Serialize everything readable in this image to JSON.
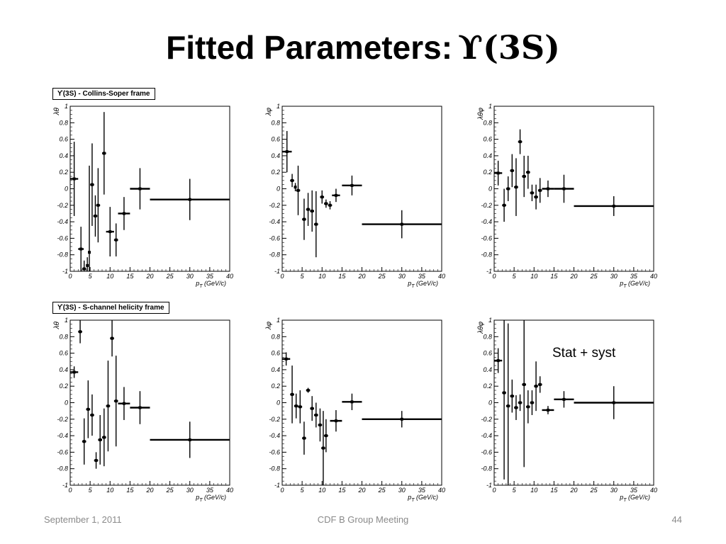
{
  "slide": {
    "title": "Fitted Parameters:",
    "title_symbol": "ϒ(3S)",
    "annotation": "Stat + syst",
    "footer": {
      "left": "September 1, 2011",
      "center": "CDF B Group Meeting",
      "right": "44"
    }
  },
  "frames": {
    "collins_soper": "ϒ(3S) - Collins-Soper frame",
    "s_channel": "ϒ(3S) - S-channel helicity frame"
  },
  "axes": {
    "x_label": "p_T (GeV/c)",
    "x_ticks": [
      "0",
      "5",
      "10",
      "15",
      "20",
      "25",
      "30",
      "35",
      "40"
    ],
    "y_ticks": [
      "-1",
      "-0.8",
      "-0.6",
      "-0.4",
      "-0.2",
      "0",
      "0.2",
      "0.4",
      "0.6",
      "0.8",
      "1"
    ]
  },
  "chart_data": [
    {
      "type": "scatter",
      "row": 0,
      "col": 0,
      "ylabel": "λθ",
      "xlim": [
        0,
        40
      ],
      "ylim": [
        -1,
        1
      ],
      "points": [
        {
          "x": 1.0,
          "xerr": 1.0,
          "y": 0.12,
          "yerr": 0.45
        },
        {
          "x": 2.7,
          "xerr": 0.7,
          "y": -0.73,
          "yerr": 0.27
        },
        {
          "x": 3.5,
          "xerr": 0.5,
          "y": -0.97,
          "yerr": 0.1
        },
        {
          "x": 4.3,
          "xerr": 0.3,
          "y": -0.93,
          "yerr": 0.1
        },
        {
          "x": 4.8,
          "xerr": 0.3,
          "y": -0.77,
          "yerr": 1.05
        },
        {
          "x": 5.5,
          "xerr": 0.5,
          "y": 0.05,
          "yerr": 0.5
        },
        {
          "x": 6.3,
          "xerr": 0.5,
          "y": -0.33,
          "yerr": 0.25
        },
        {
          "x": 7.0,
          "xerr": 0.5,
          "y": -0.2,
          "yerr": 0.45
        },
        {
          "x": 8.5,
          "xerr": 0.5,
          "y": 0.43,
          "yerr": 0.5
        },
        {
          "x": 10.0,
          "xerr": 1.0,
          "y": -0.52,
          "yerr": 0.3
        },
        {
          "x": 11.5,
          "xerr": 0.5,
          "y": -0.62,
          "yerr": 0.2
        },
        {
          "x": 13.5,
          "xerr": 1.5,
          "y": -0.3,
          "yerr": 0.2
        },
        {
          "x": 17.5,
          "xerr": 2.5,
          "y": 0.0,
          "yerr": 0.25
        },
        {
          "x": 30.0,
          "xerr": 10.0,
          "y": -0.13,
          "yerr": 0.25
        }
      ]
    },
    {
      "type": "scatter",
      "row": 0,
      "col": 1,
      "ylabel": "λφ",
      "xlim": [
        0,
        40
      ],
      "ylim": [
        -1,
        1
      ],
      "points": [
        {
          "x": 1.2,
          "xerr": 1.2,
          "y": 0.45,
          "yerr": 0.25
        },
        {
          "x": 2.5,
          "xerr": 0.5,
          "y": 0.1,
          "yerr": 0.08
        },
        {
          "x": 3.3,
          "xerr": 0.3,
          "y": 0.02,
          "yerr": 0.05
        },
        {
          "x": 4.0,
          "xerr": 0.5,
          "y": -0.02,
          "yerr": 0.3
        },
        {
          "x": 5.5,
          "xerr": 0.5,
          "y": -0.37,
          "yerr": 0.25
        },
        {
          "x": 6.5,
          "xerr": 0.5,
          "y": -0.25,
          "yerr": 0.2
        },
        {
          "x": 7.5,
          "xerr": 0.5,
          "y": -0.27,
          "yerr": 0.25
        },
        {
          "x": 8.5,
          "xerr": 0.5,
          "y": -0.43,
          "yerr": 0.4
        },
        {
          "x": 10.0,
          "xerr": 0.5,
          "y": -0.1,
          "yerr": 0.08
        },
        {
          "x": 11.0,
          "xerr": 0.5,
          "y": -0.18,
          "yerr": 0.05
        },
        {
          "x": 12.0,
          "xerr": 0.5,
          "y": -0.2,
          "yerr": 0.05
        },
        {
          "x": 13.5,
          "xerr": 1.0,
          "y": -0.08,
          "yerr": 0.08
        },
        {
          "x": 17.5,
          "xerr": 2.5,
          "y": 0.04,
          "yerr": 0.12
        },
        {
          "x": 30.0,
          "xerr": 10.0,
          "y": -0.43,
          "yerr": 0.17
        }
      ]
    },
    {
      "type": "scatter",
      "row": 0,
      "col": 2,
      "ylabel": "λθφ",
      "xlim": [
        0,
        40
      ],
      "ylim": [
        -1,
        1
      ],
      "points": [
        {
          "x": 1.0,
          "xerr": 1.0,
          "y": 0.19,
          "yerr": 0.15
        },
        {
          "x": 2.5,
          "xerr": 0.5,
          "y": -0.2,
          "yerr": 0.2
        },
        {
          "x": 3.5,
          "xerr": 0.5,
          "y": 0.0,
          "yerr": 0.15
        },
        {
          "x": 4.5,
          "xerr": 0.5,
          "y": 0.22,
          "yerr": 0.2
        },
        {
          "x": 5.5,
          "xerr": 0.5,
          "y": 0.02,
          "yerr": 0.35
        },
        {
          "x": 6.5,
          "xerr": 0.5,
          "y": 0.57,
          "yerr": 0.15
        },
        {
          "x": 7.5,
          "xerr": 0.5,
          "y": 0.15,
          "yerr": 0.25
        },
        {
          "x": 8.5,
          "xerr": 0.5,
          "y": 0.2,
          "yerr": 0.2
        },
        {
          "x": 9.5,
          "xerr": 0.5,
          "y": -0.05,
          "yerr": 0.1
        },
        {
          "x": 10.5,
          "xerr": 0.5,
          "y": -0.1,
          "yerr": 0.15
        },
        {
          "x": 11.5,
          "xerr": 0.5,
          "y": -0.02,
          "yerr": 0.15
        },
        {
          "x": 13.5,
          "xerr": 1.5,
          "y": 0.0,
          "yerr": 0.1
        },
        {
          "x": 17.5,
          "xerr": 2.5,
          "y": 0.0,
          "yerr": 0.17
        },
        {
          "x": 30.0,
          "xerr": 10.0,
          "y": -0.21,
          "yerr": 0.12
        }
      ]
    },
    {
      "type": "scatter",
      "row": 1,
      "col": 0,
      "ylabel": "λθ",
      "xlim": [
        0,
        40
      ],
      "ylim": [
        -1,
        1
      ],
      "points": [
        {
          "x": 1.0,
          "xerr": 1.0,
          "y": 0.37,
          "yerr": 0.07
        },
        {
          "x": 2.5,
          "xerr": 0.5,
          "y": 0.86,
          "yerr": 0.14
        },
        {
          "x": 3.5,
          "xerr": 0.5,
          "y": -0.47,
          "yerr": 0.28
        },
        {
          "x": 4.5,
          "xerr": 0.5,
          "y": -0.08,
          "yerr": 0.35
        },
        {
          "x": 5.5,
          "xerr": 0.5,
          "y": -0.15,
          "yerr": 0.25
        },
        {
          "x": 6.5,
          "xerr": 0.5,
          "y": -0.7,
          "yerr": 0.1
        },
        {
          "x": 7.5,
          "xerr": 0.5,
          "y": -0.45,
          "yerr": 0.3
        },
        {
          "x": 8.5,
          "xerr": 0.5,
          "y": -0.42,
          "yerr": 0.35
        },
        {
          "x": 9.5,
          "xerr": 0.5,
          "y": -0.04,
          "yerr": 0.55
        },
        {
          "x": 10.5,
          "xerr": 0.5,
          "y": 0.78,
          "yerr": 0.22
        },
        {
          "x": 11.5,
          "xerr": 0.5,
          "y": 0.02,
          "yerr": 0.55
        },
        {
          "x": 13.5,
          "xerr": 1.5,
          "y": -0.01,
          "yerr": 0.2
        },
        {
          "x": 17.5,
          "xerr": 2.5,
          "y": -0.06,
          "yerr": 0.2
        },
        {
          "x": 30.0,
          "xerr": 10.0,
          "y": -0.45,
          "yerr": 0.22
        }
      ]
    },
    {
      "type": "scatter",
      "row": 1,
      "col": 1,
      "ylabel": "λφ",
      "xlim": [
        0,
        40
      ],
      "ylim": [
        -1,
        1
      ],
      "points": [
        {
          "x": 1.0,
          "xerr": 1.0,
          "y": 0.53,
          "yerr": 0.08
        },
        {
          "x": 2.5,
          "xerr": 0.5,
          "y": 0.1,
          "yerr": 0.35
        },
        {
          "x": 3.5,
          "xerr": 0.5,
          "y": -0.04,
          "yerr": 0.15
        },
        {
          "x": 4.5,
          "xerr": 0.5,
          "y": -0.05,
          "yerr": 0.2
        },
        {
          "x": 5.5,
          "xerr": 0.5,
          "y": -0.43,
          "yerr": 0.2
        },
        {
          "x": 6.5,
          "xerr": 0.5,
          "y": 0.15,
          "yerr": 0.03
        },
        {
          "x": 7.5,
          "xerr": 0.5,
          "y": -0.07,
          "yerr": 0.15
        },
        {
          "x": 8.5,
          "xerr": 0.5,
          "y": -0.15,
          "yerr": 0.15
        },
        {
          "x": 9.5,
          "xerr": 0.5,
          "y": -0.27,
          "yerr": 0.2
        },
        {
          "x": 10.3,
          "xerr": 0.5,
          "y": -0.55,
          "yerr": 0.45
        },
        {
          "x": 11.0,
          "xerr": 0.5,
          "y": -0.4,
          "yerr": 0.2
        },
        {
          "x": 13.5,
          "xerr": 1.5,
          "y": -0.22,
          "yerr": 0.13
        },
        {
          "x": 17.5,
          "xerr": 2.5,
          "y": 0.01,
          "yerr": 0.1
        },
        {
          "x": 30.0,
          "xerr": 10.0,
          "y": -0.2,
          "yerr": 0.1
        }
      ]
    },
    {
      "type": "scatter",
      "row": 1,
      "col": 2,
      "ylabel": "λθφ",
      "xlim": [
        0,
        40
      ],
      "ylim": [
        -1,
        1
      ],
      "points": [
        {
          "x": 1.0,
          "xerr": 1.0,
          "y": 0.51,
          "yerr": 0.15
        },
        {
          "x": 2.5,
          "xerr": 0.5,
          "y": 0.12,
          "yerr": 1.05
        },
        {
          "x": 3.5,
          "xerr": 0.5,
          "y": -0.04,
          "yerr": 1.0
        },
        {
          "x": 4.5,
          "xerr": 0.5,
          "y": 0.08,
          "yerr": 0.2
        },
        {
          "x": 5.5,
          "xerr": 0.5,
          "y": -0.06,
          "yerr": 0.15
        },
        {
          "x": 6.5,
          "xerr": 0.5,
          "y": 0.0,
          "yerr": 0.1
        },
        {
          "x": 7.5,
          "xerr": 0.5,
          "y": 0.22,
          "yerr": 1.0
        },
        {
          "x": 8.5,
          "xerr": 0.5,
          "y": -0.05,
          "yerr": 0.2
        },
        {
          "x": 9.5,
          "xerr": 0.5,
          "y": 0.0,
          "yerr": 0.15
        },
        {
          "x": 10.5,
          "xerr": 0.5,
          "y": 0.2,
          "yerr": 0.3
        },
        {
          "x": 11.5,
          "xerr": 0.5,
          "y": 0.22,
          "yerr": 0.1
        },
        {
          "x": 13.5,
          "xerr": 1.5,
          "y": -0.09,
          "yerr": 0.05
        },
        {
          "x": 17.5,
          "xerr": 2.5,
          "y": 0.04,
          "yerr": 0.1
        },
        {
          "x": 30.0,
          "xerr": 10.0,
          "y": 0.0,
          "yerr": 0.2
        }
      ]
    }
  ]
}
